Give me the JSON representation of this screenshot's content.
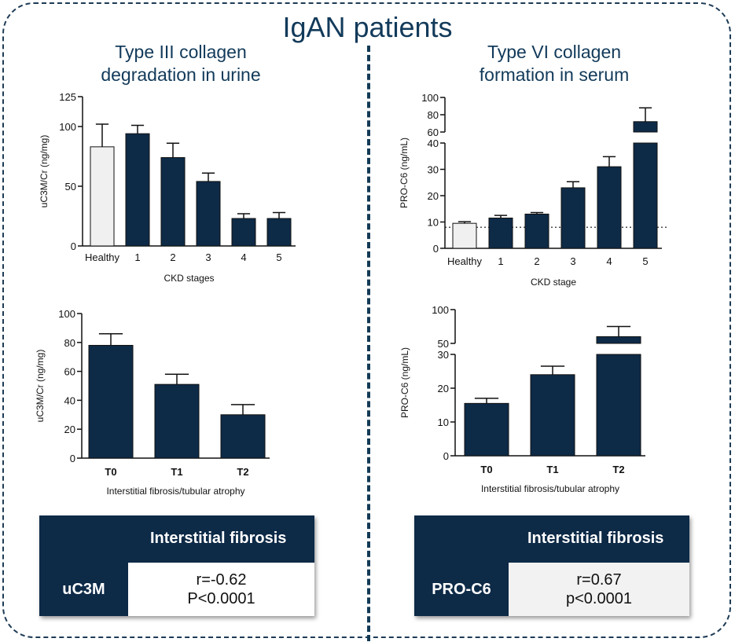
{
  "title": "IgAN patients",
  "left_subtitle": [
    "Type III collagen",
    "degradation in urine"
  ],
  "right_subtitle": [
    "Type VI collagen",
    "formation in serum"
  ],
  "colors": {
    "navy": "#0d2a47",
    "light_bar": "#f0f0f0",
    "title": "#123a5a"
  },
  "chart_data": [
    {
      "id": "uc3m_ckd",
      "type": "bar",
      "categories": [
        "Healthy",
        "1",
        "2",
        "3",
        "4",
        "5"
      ],
      "values": [
        83,
        94,
        74,
        54,
        23,
        23
      ],
      "errors": [
        19,
        7,
        12,
        7,
        4,
        5
      ],
      "bar_colors": [
        "#f0f0f0",
        "#0d2a47",
        "#0d2a47",
        "#0d2a47",
        "#0d2a47",
        "#0d2a47"
      ],
      "ylabel": "uC3M/Cr (ng/mg)",
      "xlabel": "CKD stages",
      "ylim": [
        0,
        125
      ],
      "yticks": [
        0,
        50,
        100,
        125
      ]
    },
    {
      "id": "proc6_ckd",
      "type": "bar",
      "categories": [
        "Healthy",
        "1",
        "2",
        "3",
        "4",
        "5"
      ],
      "values": [
        9.5,
        11.5,
        13,
        23,
        31,
        72
      ],
      "errors": [
        0.6,
        1,
        0.6,
        2.3,
        3.8,
        16
      ],
      "bar_colors": [
        "#f0f0f0",
        "#0d2a47",
        "#0d2a47",
        "#0d2a47",
        "#0d2a47",
        "#0d2a47"
      ],
      "ylabel": "PRO-C6 (ng/mL)",
      "xlabel": "CKD stage",
      "broken_axis": {
        "lower": [
          0,
          40
        ],
        "upper": [
          60,
          100
        ]
      },
      "yticks_lower": [
        0,
        10,
        20,
        30,
        40
      ],
      "yticks_upper": [
        60,
        80,
        100
      ],
      "reference_line": 8
    },
    {
      "id": "uc3m_fibrosis",
      "type": "bar",
      "categories": [
        "T0",
        "T1",
        "T2"
      ],
      "values": [
        78,
        51,
        30
      ],
      "errors": [
        8,
        7,
        7
      ],
      "ylabel": "uC3M/Cr (ng/mg)",
      "xlabel": "Interstitial fibrosis/tubular atrophy",
      "ylim": [
        0,
        100
      ],
      "yticks": [
        0,
        20,
        40,
        60,
        80,
        100
      ]
    },
    {
      "id": "proc6_fibrosis",
      "type": "bar",
      "categories": [
        "T0",
        "T1",
        "T2"
      ],
      "values": [
        15.5,
        24,
        60
      ],
      "errors": [
        1.5,
        2.5,
        15
      ],
      "ylabel": "PRO-C6 (ng/mL)",
      "xlabel": "Interstitial fibrosis/tubular atrophy",
      "broken_axis": {
        "lower": [
          0,
          30
        ],
        "upper": [
          50,
          100
        ]
      },
      "yticks_lower": [
        0,
        10,
        20,
        30
      ],
      "yticks_upper": [
        50,
        100
      ]
    }
  ],
  "tables": [
    {
      "header": "Interstitial fibrosis",
      "row_label": "uC3M",
      "r": "r=-0.62",
      "p": "P<0.0001"
    },
    {
      "header": "Interstitial fibrosis",
      "row_label": "PRO-C6",
      "r": "r=0.67",
      "p": "p<0.0001"
    }
  ]
}
